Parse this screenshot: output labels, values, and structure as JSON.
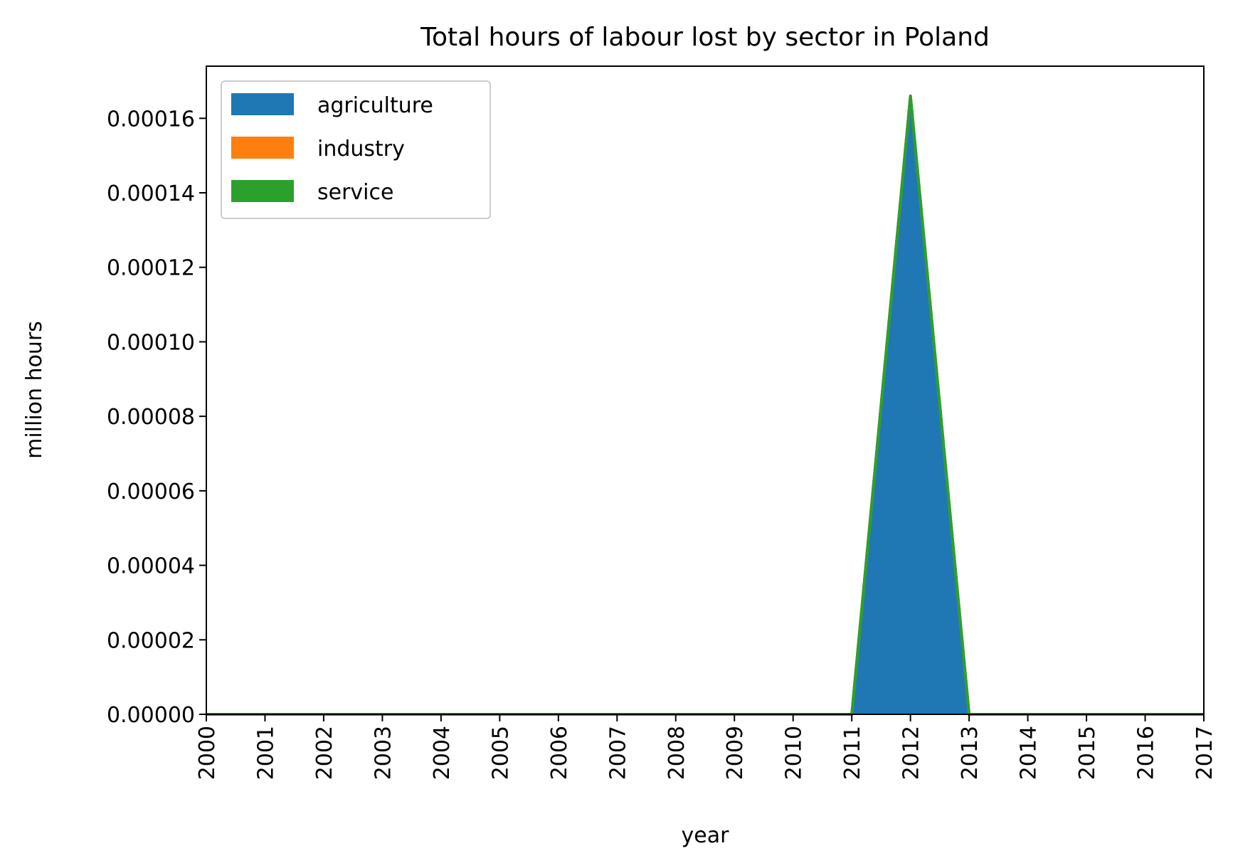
{
  "chart_data": {
    "type": "area",
    "stacked": true,
    "title": "Total hours of labour lost by sector in Poland",
    "xlabel": "year",
    "ylabel": "million hours",
    "x": [
      2000,
      2001,
      2002,
      2003,
      2004,
      2005,
      2006,
      2007,
      2008,
      2009,
      2010,
      2011,
      2012,
      2013,
      2014,
      2015,
      2016,
      2017
    ],
    "xtick_labels": [
      "2000",
      "2001",
      "2002",
      "2003",
      "2004",
      "2005",
      "2006",
      "2007",
      "2008",
      "2009",
      "2010",
      "2011",
      "2012",
      "2013",
      "2014",
      "2015",
      "2016",
      "2017"
    ],
    "xlim": [
      2000,
      2017
    ],
    "ylim": [
      0,
      0.000174
    ],
    "yticks": [
      0,
      2e-05,
      4e-05,
      6e-05,
      8e-05,
      0.0001,
      0.00012,
      0.00014,
      0.00016
    ],
    "ytick_labels": [
      "0.00000",
      "0.00002",
      "0.00004",
      "0.00006",
      "0.00008",
      "0.00010",
      "0.00012",
      "0.00014",
      "0.00016"
    ],
    "series": [
      {
        "name": "agriculture",
        "color": "#1f77b4",
        "values": [
          0,
          0,
          0,
          0,
          0,
          0,
          0,
          0,
          0,
          0,
          0,
          0,
          0.000166,
          0,
          0,
          0,
          0,
          0
        ]
      },
      {
        "name": "industry",
        "color": "#ff7f0e",
        "values": [
          0,
          0,
          0,
          0,
          0,
          0,
          0,
          0,
          0,
          0,
          0,
          0,
          0,
          0,
          0,
          0,
          0,
          0
        ]
      },
      {
        "name": "service",
        "color": "#2ca02c",
        "values": [
          0,
          0,
          0,
          0,
          0,
          0,
          0,
          0,
          0,
          0,
          0,
          0,
          0,
          0,
          0,
          0,
          0,
          0
        ]
      }
    ],
    "legend_position": "top-left",
    "grid": false
  }
}
